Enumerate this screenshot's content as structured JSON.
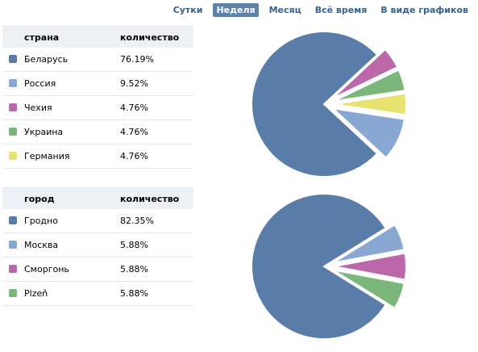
{
  "tabs": [
    {
      "label": "Сутки",
      "active": false
    },
    {
      "label": "Неделя",
      "active": true
    },
    {
      "label": "Месяц",
      "active": false
    },
    {
      "label": "Всё время",
      "active": false
    },
    {
      "label": "В виде графиков",
      "active": false
    }
  ],
  "country_table": {
    "col_name": "страна",
    "col_value": "количество",
    "rows": [
      {
        "name": "Беларусь",
        "value": "76.19%",
        "color": "#5a7ca8"
      },
      {
        "name": "Россия",
        "value": "9.52%",
        "color": "#89a7d3"
      },
      {
        "name": "Чехия",
        "value": "4.76%",
        "color": "#bb67aa"
      },
      {
        "name": "Украина",
        "value": "4.76%",
        "color": "#7bb67a"
      },
      {
        "name": "Германия",
        "value": "4.76%",
        "color": "#e8e371"
      }
    ]
  },
  "city_table": {
    "col_name": "город",
    "col_value": "количество",
    "rows": [
      {
        "name": "Гродно",
        "value": "82.35%",
        "color": "#5a7ca8"
      },
      {
        "name": "Москва",
        "value": "5.88%",
        "color": "#89a7d3"
      },
      {
        "name": "Сморгонь",
        "value": "5.88%",
        "color": "#bb67aa"
      },
      {
        "name": "Plzeň",
        "value": "5.88%",
        "color": "#7bb67a"
      }
    ]
  },
  "chart_data": [
    {
      "type": "pie",
      "categories": [
        "Беларусь",
        "Россия",
        "Чехия",
        "Украина",
        "Германия"
      ],
      "values": [
        76.19,
        9.52,
        4.76,
        4.76,
        4.76
      ],
      "colors": [
        "#5a7ca8",
        "#89a7d3",
        "#bb67aa",
        "#7bb67a",
        "#e8e371"
      ],
      "order": [
        "Беларусь",
        "Чехия",
        "Украина",
        "Германия",
        "Россия"
      ]
    },
    {
      "type": "pie",
      "categories": [
        "Гродно",
        "Москва",
        "Сморгонь",
        "Plzeň"
      ],
      "values": [
        82.35,
        5.88,
        5.88,
        5.88
      ],
      "colors": [
        "#5a7ca8",
        "#89a7d3",
        "#bb67aa",
        "#7bb67a"
      ],
      "order": [
        "Гродно",
        "Москва",
        "Сморгонь",
        "Plzeň"
      ]
    }
  ]
}
